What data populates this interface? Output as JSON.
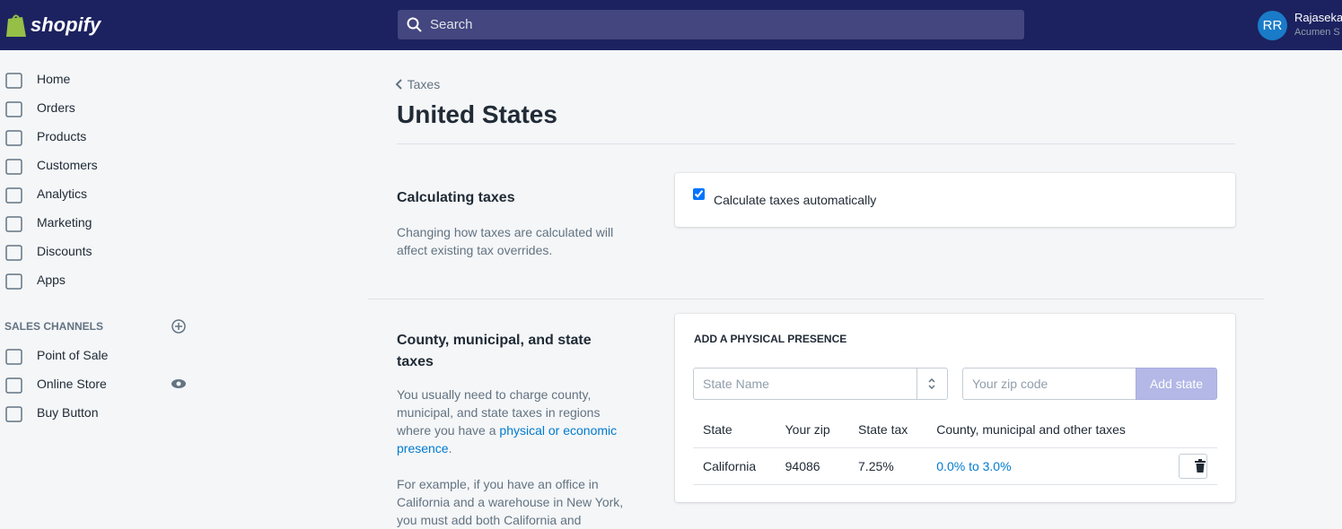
{
  "header": {
    "logo": "shopify",
    "search_placeholder": "Search",
    "avatar_initials": "RR",
    "user_name": "Rajaseka",
    "store_name": "Acumen S"
  },
  "sidebar": {
    "nav": [
      "Home",
      "Orders",
      "Products",
      "Customers",
      "Analytics",
      "Marketing",
      "Discounts",
      "Apps"
    ],
    "sales_channels_heading": "SALES CHANNELS",
    "channels": [
      "Point of Sale",
      "Online Store",
      "Buy Button"
    ]
  },
  "breadcrumb": "Taxes",
  "page_title": "United States",
  "sections": [
    {
      "title": "Calculating taxes",
      "description": "Changing how taxes are calculated will affect existing tax overrides.",
      "checkbox_label": "Calculate taxes automatically",
      "checked": true
    },
    {
      "title": "County, municipal, and state taxes",
      "description_before_link": "You usually need to charge county, municipal, and state taxes in regions where you have a ",
      "link_text": "physical or economic presence",
      "description_after_link": ".",
      "example": "For example, if you have an office in California and a warehouse in New York, you must add both California and",
      "card_heading": "ADD A PHYSICAL PRESENCE",
      "state_placeholder": "State Name",
      "zip_placeholder": "Your zip code",
      "button": "Add state",
      "table": {
        "headers": [
          "State",
          "Your zip",
          "State tax",
          "County, municipal and other taxes"
        ],
        "rows": [
          [
            "California",
            "94086",
            "7.25%",
            "0.0% to 3.0%"
          ]
        ]
      }
    }
  ]
}
